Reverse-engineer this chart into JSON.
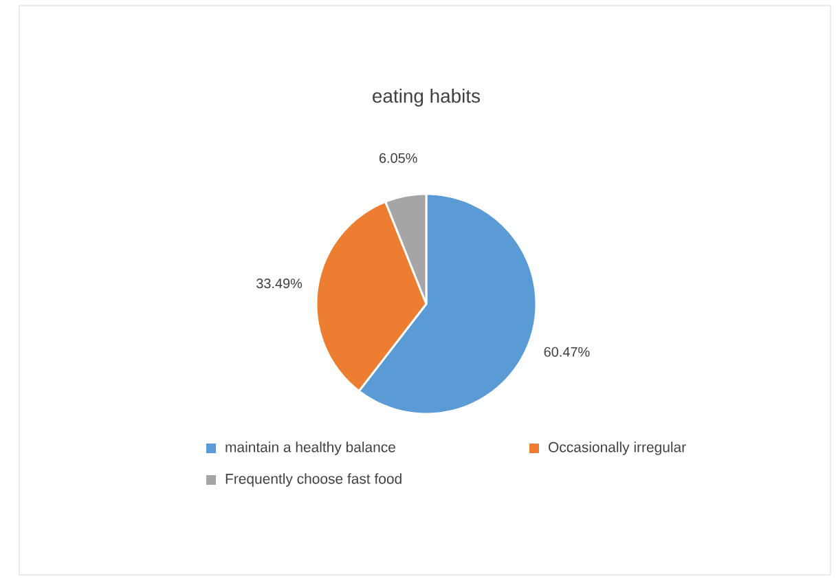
{
  "chart_data": {
    "type": "pie",
    "title": "eating habits",
    "categories": [
      "maintain a healthy balance",
      "Occasionally irregular",
      "Frequently choose fast food"
    ],
    "values": [
      60.47,
      33.49,
      6.05
    ],
    "value_labels": [
      "60.47%",
      "33.49%",
      "6.05%"
    ],
    "colors": [
      "#5b9bd5",
      "#ed7d31",
      "#a5a5a5"
    ],
    "legend": "bottom"
  }
}
